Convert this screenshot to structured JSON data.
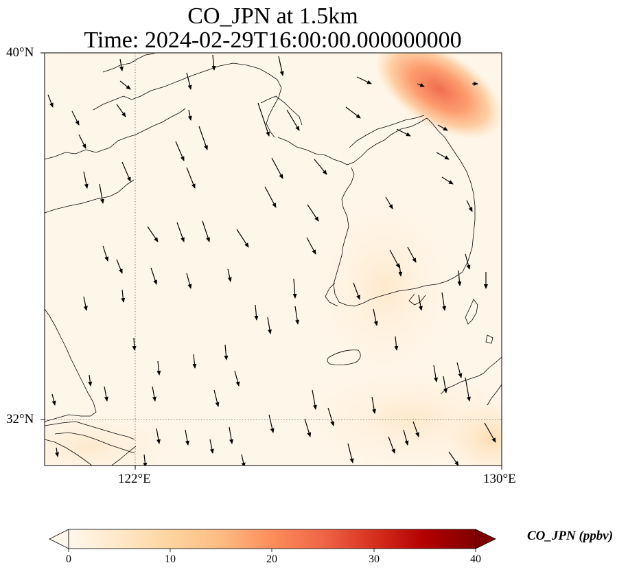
{
  "title": {
    "line1": "CO_JPN at 1.5km",
    "line2": "Time: 2024-02-29T16:00:00.000000000"
  },
  "map": {
    "lat_labels": [
      "40°N",
      "32°N"
    ],
    "lon_labels": [
      "122°E",
      "130°E"
    ],
    "extent": {
      "lon_min": 120,
      "lon_max": 130,
      "lat_min": 31,
      "lat_max": 40
    },
    "gridlines": {
      "lon": [
        122
      ],
      "lat": [
        32
      ],
      "style": "dotted"
    },
    "coastlines": true,
    "field_description": "CO concentration mostly near 0-5 ppbv, elevated plume near 128.5°E 39°N up to ~18 ppbv",
    "wind_vectors": true,
    "wind_direction": "predominantly northerly (southward arrows)"
  },
  "colorbar": {
    "label": "CO_JPN (ppbv)",
    "ticks": [
      "0",
      "10",
      "20",
      "30",
      "40"
    ],
    "min": 0,
    "max": 40,
    "colormap": "OrRd",
    "extend": "both",
    "colors": [
      "#fff7ec",
      "#fee8c8",
      "#fdd49e",
      "#fdbb84",
      "#fc8d59",
      "#ef6548",
      "#d7301f",
      "#b30000",
      "#7f0000"
    ]
  }
}
